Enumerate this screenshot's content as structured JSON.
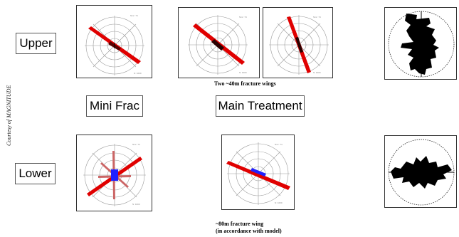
{
  "courtesy": "Courtesy of MAGNITUDE",
  "row_labels": {
    "upper": "Upper",
    "lower": "Lower"
  },
  "column_labels": {
    "mini_frac": "Mini Frac",
    "main_treatment": "Main Treatment"
  },
  "captions": {
    "upper_wings": "Two ~40m fracture wings",
    "lower_wing_line1": "~80m fracture wing",
    "lower_wing_line2": "(in accordance with model)"
  },
  "colors": {
    "fracture": "#e00000",
    "blue_core": "#2020ff",
    "rose_fill": "#000000",
    "grid": "#9a9a9a"
  }
}
